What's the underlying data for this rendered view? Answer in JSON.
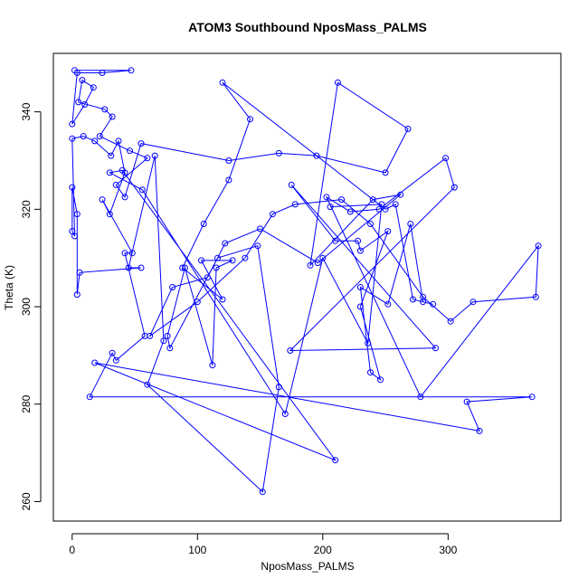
{
  "chart_data": {
    "type": "scatter",
    "title": "ATOM3 Southbound NposMass_PALMS",
    "xlabel": "NposMass_PALMS",
    "ylabel": "Theta (K)",
    "xlim": [
      -15,
      390
    ],
    "ylim": [
      256,
      352
    ],
    "x_ticks": [
      0,
      100,
      200,
      300
    ],
    "y_ticks": [
      260,
      280,
      300,
      320,
      340
    ],
    "grid": false,
    "legend": "none",
    "marker": "open-circle",
    "connect_points": true,
    "color": "#0000ff",
    "series": [
      {
        "points": [
          [
            2,
            348.5
          ],
          [
            47,
            348.5
          ],
          [
            24,
            348
          ],
          [
            4,
            348
          ],
          [
            0,
            337.5
          ],
          [
            10,
            341.5
          ],
          [
            17,
            345
          ],
          [
            8,
            346.5
          ],
          [
            5,
            342
          ],
          [
            26,
            340.5
          ],
          [
            32,
            339
          ],
          [
            22,
            335
          ],
          [
            46,
            332
          ],
          [
            60,
            330.5
          ],
          [
            35,
            325
          ],
          [
            42,
            322.5
          ],
          [
            55,
            333.5
          ],
          [
            125,
            330
          ],
          [
            165,
            331.5
          ],
          [
            195,
            331
          ],
          [
            250,
            327.5
          ],
          [
            268,
            336.5
          ],
          [
            212,
            346
          ],
          [
            190,
            308.5
          ],
          [
            240,
            322
          ],
          [
            262,
            323
          ],
          [
            196,
            309
          ],
          [
            150,
            316
          ],
          [
            122,
            313
          ],
          [
            108,
            306
          ],
          [
            80,
            304
          ],
          [
            62,
            294
          ],
          [
            100,
            301
          ],
          [
            138,
            310
          ],
          [
            160,
            319
          ],
          [
            178,
            321
          ],
          [
            215,
            322
          ],
          [
            238,
            317
          ],
          [
            280,
            302
          ],
          [
            302,
            297
          ],
          [
            320,
            301
          ],
          [
            370,
            302
          ],
          [
            372,
            312.5
          ],
          [
            278,
            281.5
          ],
          [
            203,
            322.5
          ],
          [
            222,
            319.5
          ],
          [
            245,
            320
          ],
          [
            298,
            330.5
          ],
          [
            305,
            324.5
          ],
          [
            174,
            291
          ],
          [
            290,
            291.5
          ],
          [
            175,
            325
          ],
          [
            210,
            313.5
          ],
          [
            228,
            313.5
          ],
          [
            230,
            311.5
          ],
          [
            252,
            315.5
          ],
          [
            230,
            300
          ],
          [
            246,
            285
          ],
          [
            238,
            286.5
          ],
          [
            230,
            304
          ],
          [
            252,
            300.5
          ],
          [
            270,
            317
          ],
          [
            280,
            301
          ],
          [
            288,
            300.5
          ],
          [
            272,
            301.5
          ],
          [
            258,
            321
          ],
          [
            250,
            320
          ],
          [
            120,
            346
          ],
          [
            142,
            338.5
          ],
          [
            125,
            326
          ],
          [
            105,
            317
          ],
          [
            88,
            308
          ],
          [
            120,
            301.5
          ],
          [
            103,
            309.5
          ],
          [
            128,
            309.5
          ],
          [
            115,
            308
          ],
          [
            112,
            288
          ],
          [
            90,
            308
          ],
          [
            76,
            294
          ],
          [
            78,
            291.5
          ],
          [
            116,
            310
          ],
          [
            148,
            312.5
          ],
          [
            165,
            283.5
          ],
          [
            152,
            262
          ],
          [
            60,
            284
          ],
          [
            73,
            293
          ],
          [
            66,
            331
          ],
          [
            45,
            308
          ],
          [
            55,
            308
          ],
          [
            6,
            307
          ],
          [
            4,
            302.5
          ],
          [
            4,
            319
          ],
          [
            0,
            324.5
          ],
          [
            0,
            315.5
          ],
          [
            2,
            314.5
          ],
          [
            0,
            334.5
          ],
          [
            9,
            335
          ],
          [
            18,
            334
          ],
          [
            31,
            331
          ],
          [
            37,
            334
          ],
          [
            42,
            327.5
          ],
          [
            30,
            319
          ],
          [
            24,
            322
          ],
          [
            48,
            311
          ],
          [
            42,
            311
          ],
          [
            58,
            294
          ],
          [
            35,
            289
          ],
          [
            32,
            290.5
          ],
          [
            14,
            281.5
          ],
          [
            367,
            281.5
          ],
          [
            315,
            280.5
          ],
          [
            325,
            274.5
          ],
          [
            18,
            288.5
          ],
          [
            210,
            268.5
          ],
          [
            40,
            328
          ],
          [
            30,
            327.5
          ],
          [
            56,
            324
          ],
          [
            170,
            278
          ],
          [
            200,
            310
          ],
          [
            236,
            292.5
          ],
          [
            247,
            321
          ],
          [
            206,
            320.5
          ]
        ]
      }
    ]
  }
}
